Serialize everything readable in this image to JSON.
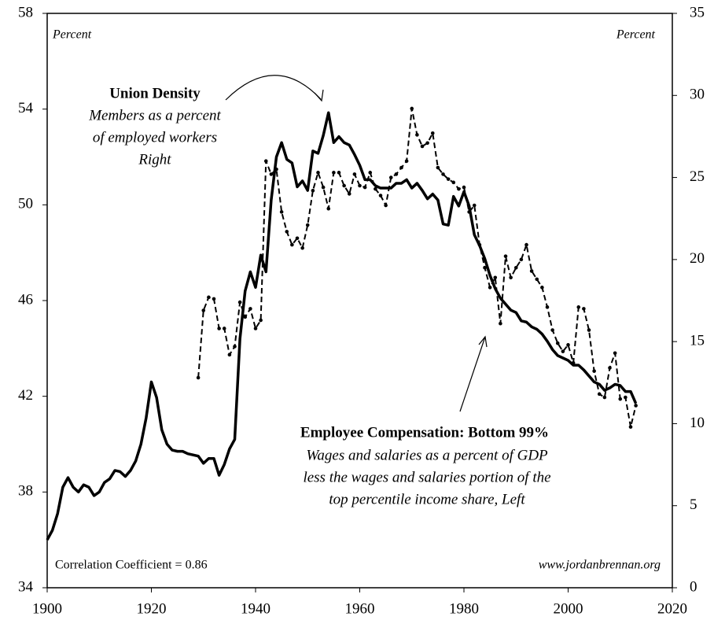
{
  "chart_data": {
    "type": "line",
    "x": [
      1900,
      1901,
      1902,
      1903,
      1904,
      1905,
      1906,
      1907,
      1908,
      1909,
      1910,
      1911,
      1912,
      1913,
      1914,
      1915,
      1916,
      1917,
      1918,
      1919,
      1920,
      1921,
      1922,
      1923,
      1924,
      1925,
      1926,
      1927,
      1928,
      1929,
      1930,
      1931,
      1932,
      1933,
      1934,
      1935,
      1936,
      1937,
      1938,
      1939,
      1940,
      1941,
      1942,
      1943,
      1944,
      1945,
      1946,
      1947,
      1948,
      1949,
      1950,
      1951,
      1952,
      1953,
      1954,
      1955,
      1956,
      1957,
      1958,
      1959,
      1960,
      1961,
      1962,
      1963,
      1964,
      1965,
      1966,
      1967,
      1968,
      1969,
      1970,
      1971,
      1972,
      1973,
      1974,
      1975,
      1976,
      1977,
      1978,
      1979,
      1980,
      1981,
      1982,
      1983,
      1984,
      1985,
      1986,
      1987,
      1988,
      1989,
      1990,
      1991,
      1992,
      1993,
      1994,
      1995,
      1996,
      1997,
      1998,
      1999,
      2000,
      2001,
      2002,
      2003,
      2004,
      2005,
      2006,
      2007,
      2008,
      2009,
      2010,
      2011,
      2012,
      2013
    ],
    "series": [
      {
        "name": "Employee Compensation: Bottom 99%",
        "color": "#000000",
        "axis": "y",
        "annotation": [
          "Wages and salaries as a percent of GDP",
          "less the wages and salaries portion of the",
          "top percentile income share,  Left"
        ],
        "values": [
          36.0,
          36.4,
          37.1,
          38.2,
          38.6,
          38.2,
          38.0,
          38.3,
          38.2,
          37.85,
          38.0,
          38.4,
          38.55,
          38.9,
          38.85,
          38.65,
          38.9,
          39.3,
          40.0,
          41.1,
          42.6,
          41.95,
          40.6,
          40.0,
          39.75,
          39.7,
          39.7,
          39.6,
          39.55,
          39.5,
          39.2,
          39.4,
          39.4,
          38.7,
          39.15,
          39.8,
          40.2,
          44.4,
          46.4,
          47.2,
          46.55,
          47.9,
          47.2,
          50.2,
          52.0,
          52.6,
          51.9,
          51.75,
          50.75,
          51.0,
          50.6,
          52.25,
          52.15,
          52.9,
          53.85,
          52.6,
          52.85,
          52.6,
          52.5,
          52.1,
          51.65,
          51.05,
          51.05,
          50.8,
          50.7,
          50.7,
          50.7,
          50.9,
          50.9,
          51.05,
          50.7,
          50.9,
          50.6,
          50.25,
          50.45,
          50.2,
          49.2,
          49.15,
          50.35,
          49.95,
          50.55,
          49.95,
          48.75,
          48.3,
          47.75,
          47.05,
          46.5,
          46.1,
          45.85,
          45.6,
          45.5,
          45.15,
          45.1,
          44.9,
          44.8,
          44.6,
          44.3,
          43.95,
          43.7,
          43.6,
          43.5,
          43.3,
          43.3,
          43.1,
          42.85,
          42.6,
          42.5,
          42.25,
          42.35,
          42.5,
          42.45,
          42.2,
          42.2,
          41.7
        ]
      },
      {
        "name": "Union Density",
        "color": "#000000",
        "axis": "y2",
        "dashed": true,
        "annotation": [
          "Members as a percent",
          "of employed workers",
          "Right"
        ],
        "values": [
          null,
          null,
          null,
          null,
          null,
          null,
          null,
          null,
          null,
          null,
          null,
          null,
          null,
          null,
          null,
          null,
          null,
          null,
          null,
          null,
          null,
          null,
          null,
          null,
          null,
          null,
          null,
          null,
          null,
          12.8,
          16.9,
          17.7,
          17.6,
          15.8,
          15.8,
          14.2,
          14.7,
          17.4,
          16.5,
          17.0,
          15.8,
          16.3,
          26.0,
          25.2,
          25.5,
          22.9,
          21.7,
          20.9,
          21.3,
          20.7,
          22.1,
          24.2,
          25.3,
          24.4,
          23.1,
          25.3,
          25.3,
          24.5,
          24.0,
          25.2,
          24.5,
          24.4,
          25.3,
          24.3,
          23.9,
          23.3,
          25.0,
          25.2,
          25.6,
          26.0,
          29.2,
          27.6,
          26.9,
          27.1,
          27.7,
          25.6,
          25.2,
          24.9,
          24.7,
          24.3,
          24.4,
          22.9,
          23.3,
          20.9,
          19.5,
          18.3,
          18.9,
          16.1,
          20.2,
          18.9,
          19.5,
          20.0,
          20.9,
          19.3,
          18.8,
          18.3,
          17.1,
          15.7,
          14.9,
          14.4,
          14.8,
          13.7,
          17.1,
          17.0,
          15.7,
          13.2,
          11.8,
          11.6,
          13.4,
          14.3,
          11.5,
          11.6,
          9.8,
          11.1
        ]
      }
    ],
    "y_label": "Percent",
    "y2_label": "Percent",
    "note_left": "Correlation Coefficient = 0.86",
    "note_right": "www.jordanbrennan.org",
    "xlim": [
      1900,
      2020
    ],
    "xticks": [
      1900,
      1920,
      1940,
      1960,
      1980,
      2000,
      2020
    ],
    "ylim": [
      34,
      58
    ],
    "yticks": [
      34,
      38,
      42,
      46,
      50,
      54,
      58
    ],
    "y2lim": [
      0,
      35
    ],
    "y2ticks": [
      0,
      5,
      10,
      15,
      20,
      25,
      30,
      35
    ]
  }
}
